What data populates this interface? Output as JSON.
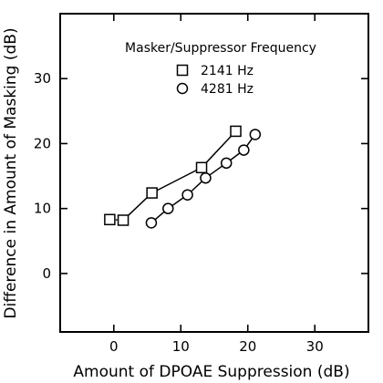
{
  "chart_data": {
    "type": "line",
    "title": "",
    "xlabel": "Amount of DPOAE Suppression (dB)",
    "ylabel": "Difference in Amount of Masking (dB)",
    "xlim": [
      -8,
      38
    ],
    "ylim": [
      -9,
      40
    ],
    "x_ticks": [
      0,
      10,
      20,
      30
    ],
    "y_ticks": [
      0,
      10,
      20,
      30
    ],
    "grid": false,
    "legend": {
      "title": "Masker/Suppressor Frequency",
      "placement": "top-right"
    },
    "series": [
      {
        "name": "2141 Hz",
        "marker": "square",
        "color": "#000000",
        "points": [
          {
            "x": -0.6,
            "y": 8.3
          },
          {
            "x": 1.4,
            "y": 8.2
          },
          {
            "x": 5.7,
            "y": 12.4
          },
          {
            "x": 13.1,
            "y": 16.3
          },
          {
            "x": 18.2,
            "y": 21.9
          }
        ]
      },
      {
        "name": "4281 Hz",
        "marker": "circle",
        "color": "#000000",
        "points": [
          {
            "x": 5.6,
            "y": 7.8
          },
          {
            "x": 8.1,
            "y": 10.0
          },
          {
            "x": 11.0,
            "y": 12.1
          },
          {
            "x": 13.7,
            "y": 14.7
          },
          {
            "x": 16.8,
            "y": 17.0
          },
          {
            "x": 19.4,
            "y": 19.0
          },
          {
            "x": 21.1,
            "y": 21.4
          }
        ]
      }
    ]
  }
}
